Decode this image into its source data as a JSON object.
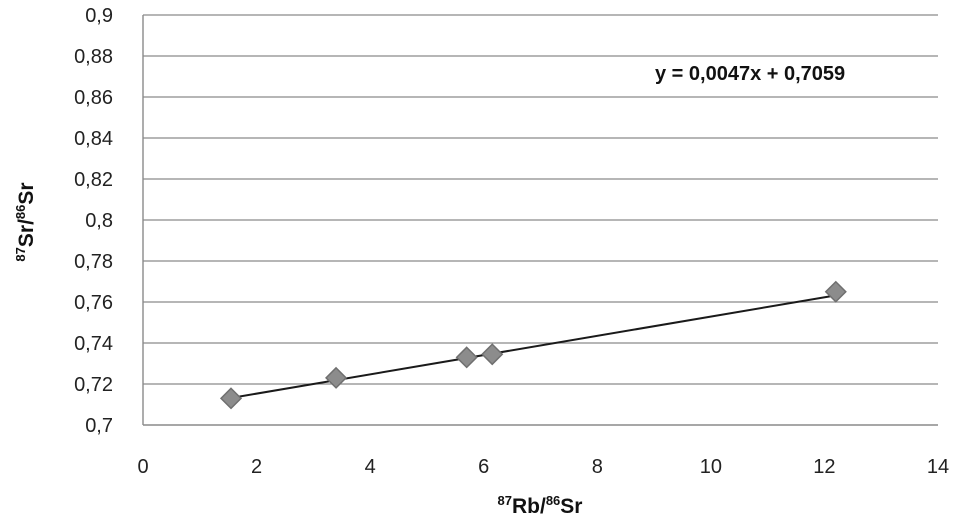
{
  "chart_data": {
    "type": "scatter",
    "title": "",
    "xlabel": {
      "sup1": "87",
      "base1": "Rb/",
      "sup2": "86",
      "base2": "Sr"
    },
    "ylabel": {
      "sup1": "87",
      "base1": "Sr/",
      "sup2": "86",
      "base2": "Sr"
    },
    "xlim": [
      0,
      14
    ],
    "ylim": [
      0.7,
      0.9
    ],
    "x_ticks": [
      0,
      2,
      4,
      6,
      8,
      10,
      12,
      14
    ],
    "x_tick_labels": [
      "0",
      "2",
      "4",
      "6",
      "8",
      "10",
      "12",
      "14"
    ],
    "y_ticks": [
      0.7,
      0.72,
      0.74,
      0.76,
      0.78,
      0.8,
      0.82,
      0.84,
      0.86,
      0.88,
      0.9
    ],
    "y_tick_labels": [
      "0,7",
      "0,72",
      "0,74",
      "0,76",
      "0,78",
      "0,8",
      "0,82",
      "0,84",
      "0,86",
      "0,88",
      "0,9"
    ],
    "grid": "horizontal",
    "series": [
      {
        "marker": "diamond",
        "color": "#8c8c8c",
        "points": [
          {
            "x": 1.55,
            "y": 0.713
          },
          {
            "x": 3.4,
            "y": 0.723
          },
          {
            "x": 5.7,
            "y": 0.733
          },
          {
            "x": 6.15,
            "y": 0.7345
          },
          {
            "x": 12.2,
            "y": 0.765
          }
        ]
      }
    ],
    "trendline": {
      "slope": 0.0047,
      "intercept": 0.7059,
      "x_range": [
        1.55,
        12.2
      ],
      "equation": "y = 0,0047x + 0,7059"
    }
  }
}
